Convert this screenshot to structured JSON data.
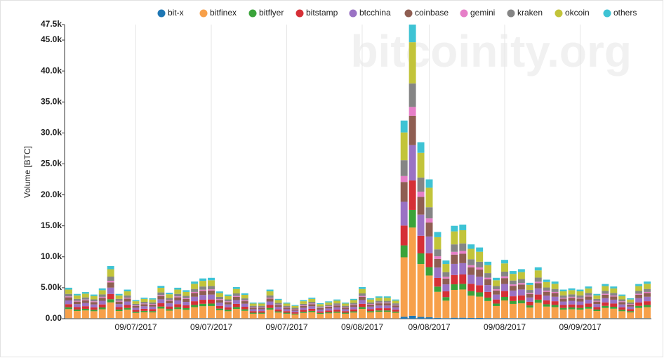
{
  "chart_data": {
    "type": "stacked_bar",
    "y_label": "Volume [BTC]",
    "watermark": "bitcoinity.org",
    "categories": [
      null,
      null,
      null,
      null,
      null,
      null,
      null,
      null,
      "09/07/2017",
      null,
      null,
      null,
      null,
      null,
      null,
      null,
      null,
      "09/07/2017",
      null,
      null,
      null,
      null,
      null,
      null,
      null,
      null,
      "09/07/2017",
      null,
      null,
      null,
      null,
      null,
      null,
      null,
      null,
      "09/08/2017",
      null,
      null,
      null,
      null,
      null,
      null,
      null,
      "09/08/2017",
      null,
      null,
      null,
      null,
      null,
      null,
      null,
      null,
      "09/08/2017",
      null,
      null,
      null,
      null,
      null,
      null,
      null,
      null,
      "09/09/2017",
      null,
      null,
      null,
      null,
      null,
      null,
      null,
      null
    ],
    "ylim": [
      0,
      47500
    ],
    "yticks": [
      {
        "value": 0,
        "label": "0.00"
      },
      {
        "value": 5000,
        "label": "5.00k"
      },
      {
        "value": 10000,
        "label": "10.0k"
      },
      {
        "value": 15000,
        "label": "15.0k"
      },
      {
        "value": 20000,
        "label": "20.0k"
      },
      {
        "value": 25000,
        "label": "25.0k"
      },
      {
        "value": 30000,
        "label": "30.0k"
      },
      {
        "value": 35000,
        "label": "35.0k"
      },
      {
        "value": 40000,
        "label": "40.0k"
      },
      {
        "value": 45000,
        "label": "45.0k"
      },
      {
        "value": 47500,
        "label": "47.5k"
      }
    ],
    "x_grid": true,
    "series": [
      {
        "name": "bit-x",
        "color": "#1f77b4",
        "values": [
          50,
          40,
          43,
          39,
          49,
          85,
          40,
          47,
          30,
          34,
          33,
          53,
          42,
          50,
          46,
          60,
          65,
          66,
          44,
          39,
          51,
          41,
          26,
          26,
          47,
          32,
          26,
          22,
          30,
          34,
          25,
          28,
          31,
          26,
          32,
          51,
          33,
          36,
          36,
          31,
          320,
          475,
          285,
          225,
          140,
          94,
          150,
          152,
          120,
          115,
          92,
          66,
          95,
          77,
          80,
          58,
          83,
          63,
          60,
          47,
          49,
          47,
          52,
          40,
          56,
          52,
          39,
          33,
          56,
          60
        ]
      },
      {
        "name": "bitfinex",
        "color": "#f7a04a",
        "values": [
          1500,
          1200,
          1290,
          1170,
          1470,
          2550,
          1200,
          1410,
          900,
          1020,
          990,
          1590,
          1260,
          1500,
          1380,
          1800,
          1950,
          1980,
          1320,
          1170,
          1530,
          1230,
          780,
          780,
          1410,
          960,
          780,
          660,
          900,
          1020,
          750,
          840,
          930,
          780,
          960,
          1530,
          990,
          1080,
          1080,
          930,
          9600,
          14250,
          8550,
          6750,
          4200,
          2820,
          4500,
          4560,
          3600,
          3450,
          2760,
          1980,
          2850,
          2310,
          2400,
          1740,
          2490,
          1890,
          1800,
          1410,
          1470,
          1410,
          1560,
          1200,
          1680,
          1560,
          1170,
          990,
          1680,
          1800
        ]
      },
      {
        "name": "bitflyer",
        "color": "#3aa33a",
        "values": [
          300,
          240,
          258,
          234,
          294,
          510,
          240,
          282,
          180,
          204,
          198,
          318,
          252,
          300,
          276,
          360,
          390,
          396,
          264,
          234,
          306,
          246,
          156,
          156,
          282,
          192,
          156,
          132,
          180,
          204,
          150,
          168,
          186,
          156,
          192,
          306,
          198,
          216,
          216,
          186,
          1920,
          2850,
          1710,
          1350,
          840,
          564,
          900,
          912,
          720,
          690,
          552,
          396,
          570,
          462,
          480,
          348,
          498,
          378,
          360,
          282,
          294,
          282,
          312,
          240,
          336,
          312,
          234,
          198,
          336,
          360
        ]
      },
      {
        "name": "bitstamp",
        "color": "#d62f36",
        "values": [
          500,
          400,
          430,
          390,
          490,
          850,
          400,
          470,
          300,
          340,
          330,
          530,
          420,
          500,
          460,
          600,
          650,
          660,
          440,
          390,
          510,
          410,
          260,
          260,
          470,
          320,
          260,
          220,
          300,
          340,
          250,
          280,
          310,
          260,
          320,
          510,
          330,
          360,
          360,
          310,
          3200,
          4750,
          2850,
          2250,
          1400,
          940,
          1500,
          1520,
          1200,
          1150,
          920,
          660,
          950,
          770,
          800,
          580,
          830,
          630,
          600,
          470,
          490,
          470,
          520,
          400,
          560,
          520,
          390,
          330,
          560,
          600
        ]
      },
      {
        "name": "btcchina",
        "color": "#9a72c4",
        "values": [
          600,
          480,
          516,
          468,
          588,
          1020,
          480,
          564,
          360,
          408,
          396,
          636,
          504,
          600,
          552,
          720,
          780,
          792,
          528,
          468,
          612,
          492,
          312,
          312,
          564,
          384,
          312,
          264,
          360,
          408,
          300,
          336,
          372,
          312,
          384,
          612,
          396,
          432,
          432,
          372,
          3840,
          5700,
          3420,
          2700,
          1680,
          1128,
          1800,
          1824,
          1440,
          1380,
          1104,
          792,
          1140,
          924,
          960,
          696,
          996,
          756,
          720,
          564,
          588,
          564,
          624,
          480,
          672,
          624,
          468,
          396,
          672,
          720
        ]
      },
      {
        "name": "coinbase",
        "color": "#8f5e52",
        "values": [
          500,
          400,
          430,
          390,
          490,
          850,
          400,
          470,
          300,
          340,
          330,
          530,
          420,
          500,
          460,
          600,
          650,
          660,
          440,
          390,
          510,
          410,
          260,
          260,
          470,
          320,
          260,
          220,
          300,
          340,
          250,
          280,
          310,
          260,
          320,
          510,
          330,
          360,
          360,
          310,
          3200,
          4750,
          2850,
          2250,
          1400,
          940,
          1500,
          1520,
          1200,
          1150,
          920,
          660,
          950,
          770,
          800,
          580,
          830,
          630,
          600,
          470,
          490,
          470,
          520,
          400,
          560,
          520,
          390,
          330,
          560,
          600
        ]
      },
      {
        "name": "gemini",
        "color": "#e67fc8",
        "values": [
          150,
          120,
          129,
          117,
          147,
          255,
          120,
          141,
          90,
          102,
          99,
          159,
          126,
          150,
          138,
          180,
          195,
          198,
          132,
          117,
          153,
          123,
          78,
          78,
          141,
          96,
          78,
          66,
          90,
          102,
          75,
          84,
          93,
          78,
          96,
          153,
          99,
          108,
          108,
          93,
          960,
          1425,
          855,
          675,
          420,
          282,
          450,
          456,
          360,
          345,
          276,
          198,
          285,
          231,
          240,
          174,
          249,
          189,
          180,
          141,
          147,
          141,
          156,
          120,
          168,
          156,
          117,
          99,
          168,
          180
        ]
      },
      {
        "name": "kraken",
        "color": "#858585",
        "values": [
          400,
          320,
          344,
          312,
          392,
          680,
          320,
          376,
          240,
          272,
          264,
          424,
          336,
          400,
          368,
          480,
          520,
          528,
          352,
          312,
          408,
          328,
          208,
          208,
          376,
          256,
          208,
          176,
          240,
          272,
          200,
          224,
          248,
          208,
          256,
          408,
          264,
          288,
          288,
          248,
          2560,
          3800,
          2280,
          1800,
          1120,
          752,
          1200,
          1216,
          960,
          920,
          736,
          528,
          760,
          616,
          640,
          464,
          664,
          504,
          480,
          376,
          392,
          376,
          416,
          320,
          448,
          416,
          312,
          264,
          448,
          480
        ]
      },
      {
        "name": "okcoin",
        "color": "#c2c43a",
        "values": [
          700,
          560,
          602,
          546,
          686,
          1190,
          560,
          658,
          420,
          476,
          462,
          742,
          588,
          700,
          644,
          840,
          910,
          924,
          616,
          546,
          714,
          574,
          364,
          364,
          658,
          448,
          364,
          308,
          420,
          476,
          350,
          392,
          434,
          364,
          448,
          714,
          462,
          504,
          504,
          434,
          4480,
          6650,
          3990,
          3150,
          1960,
          1316,
          2100,
          2128,
          1680,
          1610,
          1288,
          924,
          1330,
          1078,
          1120,
          812,
          1162,
          882,
          840,
          658,
          686,
          658,
          728,
          560,
          784,
          728,
          546,
          462,
          784,
          840
        ]
      },
      {
        "name": "others",
        "color": "#3ec3d4",
        "values": [
          300,
          240,
          258,
          234,
          294,
          510,
          240,
          282,
          180,
          204,
          198,
          318,
          252,
          300,
          276,
          360,
          390,
          396,
          264,
          234,
          306,
          246,
          156,
          156,
          282,
          192,
          156,
          132,
          180,
          204,
          150,
          168,
          186,
          156,
          192,
          306,
          198,
          216,
          216,
          186,
          1920,
          2850,
          1710,
          1350,
          840,
          564,
          900,
          912,
          720,
          690,
          552,
          396,
          570,
          462,
          480,
          348,
          498,
          378,
          360,
          282,
          294,
          282,
          312,
          240,
          336,
          312,
          234,
          198,
          336,
          360
        ]
      }
    ]
  }
}
